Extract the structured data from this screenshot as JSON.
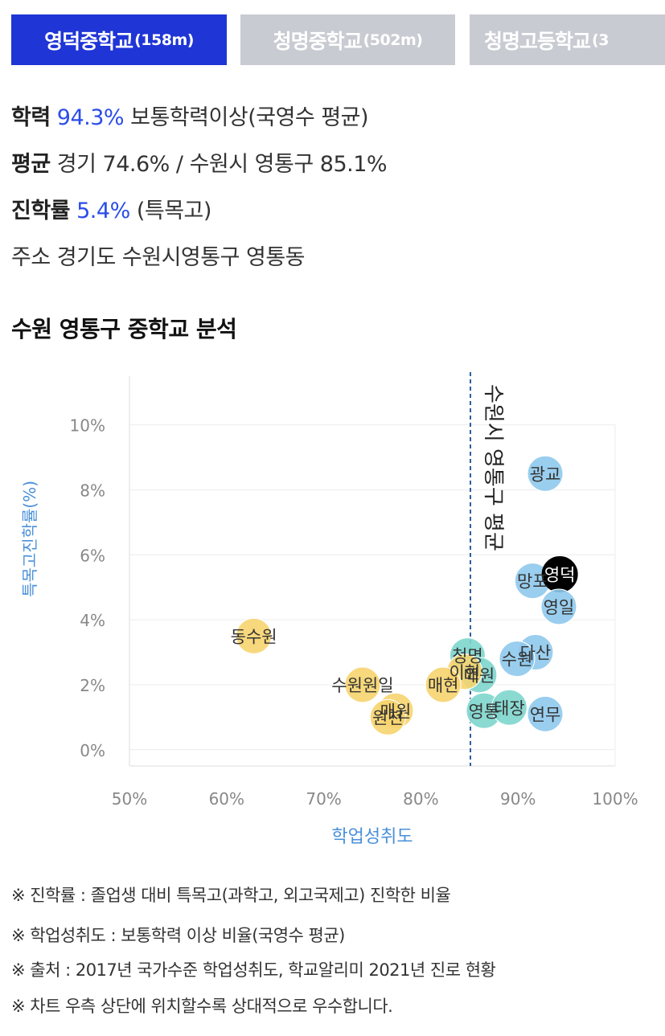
{
  "tabs": [
    {
      "name": "영덕중학교",
      "dist": "(158m)"
    },
    {
      "name": "청명중학교",
      "dist": "(502m)"
    },
    {
      "name": "청명고등학교",
      "dist": "(3"
    }
  ],
  "info": {
    "l1_label": "학력",
    "l1_value": "94.3%",
    "l1_rest": "보통학력이상(국영수 평균)",
    "l2_label": "평균",
    "l2_rest": "경기 74.6% / 수원시 영통구 85.1%",
    "l3_label": "진학률",
    "l3_value": "5.4%",
    "l3_rest": "(특목고)",
    "l4_label": "주소",
    "l4_rest": "경기도 수원시영통구 영통동"
  },
  "section_title": "수원 영통구 중학교 분석",
  "notes": [
    "※ 진학률 : 졸업생 대비 특목고(과학고, 외고국제고) 진학한 비율",
    "※ 학업성취도 : 보통학력 이상 비율(국영수 평균)",
    "※ 출처 : 2017년 국가수준 학업성취도, 학교알리미 2021년 진로 현황",
    "※ 차트 우측 상단에 위치할수록 상대적으로 우수합니다."
  ],
  "chart_data": {
    "type": "scatter",
    "xlabel": "학업성취도",
    "ylabel": "특목고진학률(%)",
    "xlim": [
      50,
      100
    ],
    "ylim": [
      -0.5,
      11.5
    ],
    "xticks": [
      "50%",
      "60%",
      "70%",
      "80%",
      "90%",
      "100%"
    ],
    "yticks": [
      "0%",
      "2%",
      "4%",
      "6%",
      "8%",
      "10%"
    ],
    "reference_line": {
      "x": 85.1,
      "label": "수원시 영통구 평균"
    },
    "colors": {
      "blue": "#8fc9ec",
      "teal": "#7dd6cd",
      "yellow": "#f6d46e",
      "highlight": "#000000",
      "axis_label": "#4a90d9"
    },
    "points": [
      {
        "label": "광교",
        "x": 92.8,
        "y": 8.5,
        "group": "blue"
      },
      {
        "label": "망포",
        "x": 91.5,
        "y": 5.2,
        "group": "blue"
      },
      {
        "label": "영덕",
        "x": 94.3,
        "y": 5.4,
        "group": "highlight"
      },
      {
        "label": "영일",
        "x": 94.2,
        "y": 4.4,
        "group": "blue"
      },
      {
        "label": "다산",
        "x": 91.8,
        "y": 3.0,
        "group": "blue"
      },
      {
        "label": "수원",
        "x": 89.9,
        "y": 2.8,
        "group": "blue"
      },
      {
        "label": "연무",
        "x": 92.8,
        "y": 1.1,
        "group": "blue"
      },
      {
        "label": "청명",
        "x": 84.8,
        "y": 2.9,
        "group": "teal"
      },
      {
        "label": "영통",
        "x": 86.5,
        "y": 1.2,
        "group": "teal"
      },
      {
        "label": "태장",
        "x": 89.1,
        "y": 1.3,
        "group": "teal"
      },
      {
        "label": "매원",
        "x": 86.0,
        "y": 2.3,
        "group": "teal"
      },
      {
        "label": "이현",
        "x": 84.5,
        "y": 2.4,
        "group": "yellow"
      },
      {
        "label": "매현",
        "x": 82.3,
        "y": 2.0,
        "group": "yellow"
      },
      {
        "label": "동수원",
        "x": 62.8,
        "y": 3.5,
        "group": "yellow"
      },
      {
        "label": "수원원일",
        "x": 74.0,
        "y": 2.0,
        "group": "yellow"
      },
      {
        "label": "매원",
        "x": 77.4,
        "y": 1.2,
        "group": "yellow"
      },
      {
        "label": "원천",
        "x": 76.6,
        "y": 1.0,
        "group": "yellow"
      }
    ]
  }
}
